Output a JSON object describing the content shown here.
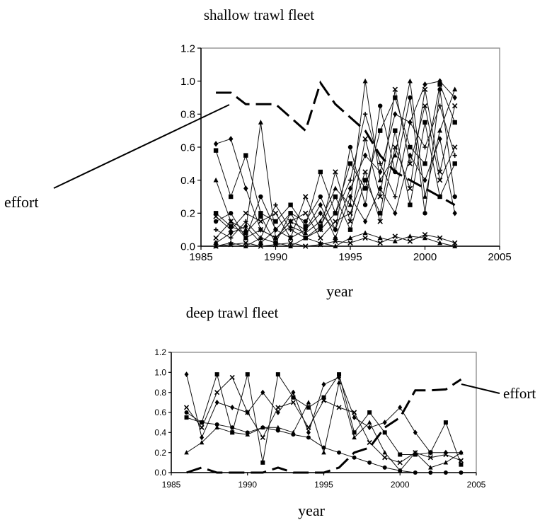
{
  "chart_data": [
    {
      "type": "line",
      "title": "shallow trawl fleet",
      "xlabel": "year",
      "ylabel": "",
      "xlim": [
        1985,
        2005
      ],
      "ylim": [
        0,
        1.2
      ],
      "xticks": [
        1985,
        1990,
        1995,
        2000,
        2005
      ],
      "yticks": [
        0.0,
        0.2,
        0.4,
        0.6,
        0.8,
        1.0,
        1.2
      ],
      "ytick_labels": [
        "0.0",
        "0.2",
        "0.4",
        "0.6",
        "0.8",
        "1.0",
        "1.2"
      ],
      "grid": false,
      "annotation": "effort",
      "effort": {
        "x": [
          1986,
          1987,
          1988,
          1989,
          1990,
          1991,
          1992,
          1993,
          1994,
          1995,
          1996,
          1997,
          1998,
          1999,
          2000,
          2001,
          2002
        ],
        "y": [
          0.93,
          0.93,
          0.86,
          0.86,
          0.86,
          0.78,
          0.7,
          0.99,
          0.86,
          0.78,
          0.7,
          0.55,
          0.45,
          0.4,
          0.35,
          0.3,
          0.25
        ]
      },
      "x": [
        1986,
        1987,
        1988,
        1989,
        1990,
        1991,
        1992,
        1993,
        1994,
        1995,
        1996,
        1997,
        1998,
        1999,
        2000,
        2001,
        2002
      ],
      "series": [
        {
          "values": [
            0.62,
            0.65,
            0.35,
            0.1,
            0.05,
            0.15,
            0.1,
            0.2,
            0.1,
            0.35,
            0.55,
            0.45,
            0.8,
            0.75,
            0.98,
            1.0,
            0.9
          ]
        },
        {
          "values": [
            0.58,
            0.3,
            0.55,
            0.2,
            0.15,
            0.25,
            0.12,
            0.45,
            0.2,
            0.5,
            0.35,
            0.7,
            0.9,
            0.6,
            0.5,
            0.98,
            0.75
          ]
        },
        {
          "values": [
            0.4,
            0.15,
            0.1,
            0.75,
            0.05,
            0.12,
            0.08,
            0.15,
            0.35,
            0.25,
            1.0,
            0.4,
            0.55,
            1.0,
            0.3,
            0.7,
            0.95
          ]
        },
        {
          "values": [
            0.18,
            0.1,
            0.2,
            0.15,
            0.2,
            0.05,
            0.3,
            0.1,
            0.45,
            0.15,
            0.65,
            0.3,
            0.95,
            0.5,
            0.85,
            0.4,
            0.6
          ]
        },
        {
          "values": [
            0.15,
            0.2,
            0.05,
            0.3,
            0.1,
            0.2,
            0.15,
            0.3,
            0.1,
            0.6,
            0.25,
            0.85,
            0.45,
            0.9,
            0.2,
            0.95,
            0.3
          ]
        },
        {
          "values": [
            0.1,
            0.05,
            0.15,
            0.05,
            0.25,
            0.1,
            0.05,
            0.1,
            0.2,
            0.4,
            0.8,
            0.5,
            0.3,
            0.75,
            0.6,
            0.85,
            0.55
          ]
        },
        {
          "values": [
            0.05,
            0.15,
            0.05,
            0.1,
            0.05,
            0.15,
            0.2,
            0.05,
            0.15,
            0.2,
            0.45,
            0.15,
            0.6,
            0.35,
            0.95,
            0.45,
            0.85
          ]
        },
        {
          "values": [
            0.02,
            0.08,
            0.12,
            0.02,
            0.1,
            0.05,
            0.1,
            0.25,
            0.05,
            0.3,
            0.15,
            0.35,
            0.2,
            0.55,
            0.4,
            0.65,
            0.2
          ]
        },
        {
          "values": [
            0.2,
            0.12,
            0.08,
            0.18,
            0.02,
            0.2,
            0.05,
            0.12,
            0.3,
            0.1,
            0.4,
            0.2,
            0.7,
            0.25,
            0.75,
            0.3,
            0.5
          ]
        },
        {
          "values": [
            0.0,
            0.02,
            0.0,
            0.05,
            0.02,
            0.0,
            0.05,
            0.02,
            0.0,
            0.05,
            0.08,
            0.05,
            0.03,
            0.06,
            0.05,
            0.02,
            0.0
          ]
        },
        {
          "values": [
            0.0,
            0.01,
            0.02,
            0.0,
            0.01,
            0.02,
            0.0,
            0.01,
            0.03,
            0.02,
            0.05,
            0.02,
            0.06,
            0.03,
            0.07,
            0.05,
            0.02
          ]
        }
      ]
    },
    {
      "type": "line",
      "title": "deep trawl fleet",
      "xlabel": "year",
      "ylabel": "",
      "xlim": [
        1985,
        2005
      ],
      "ylim": [
        0,
        1.2
      ],
      "xticks": [
        1985,
        1990,
        1995,
        2000,
        2005
      ],
      "yticks": [
        0.0,
        0.2,
        0.4,
        0.6,
        0.8,
        1.0,
        1.2
      ],
      "ytick_labels": [
        "0.0",
        "0.2",
        "0.4",
        "0.6",
        "0.8",
        "1.0",
        "1.2"
      ],
      "grid": false,
      "annotation": "effort",
      "effort": {
        "x": [
          1986,
          1987,
          1988,
          1989,
          1990,
          1991,
          1992,
          1993,
          1994,
          1995,
          1996,
          1997,
          1998,
          1999,
          2000,
          2001,
          2002,
          2003,
          2004
        ],
        "y": [
          0.0,
          0.05,
          0.0,
          0.0,
          0.0,
          0.0,
          0.05,
          0.0,
          0.0,
          0.0,
          0.05,
          0.2,
          0.25,
          0.45,
          0.55,
          0.82,
          0.82,
          0.83,
          0.93
        ]
      },
      "x": [
        1986,
        1987,
        1988,
        1989,
        1990,
        1991,
        1992,
        1993,
        1994,
        1995,
        1996,
        1997,
        1998,
        1999,
        2000,
        2001,
        2002,
        2003,
        2004
      ],
      "series": [
        {
          "values": [
            0.98,
            0.35,
            0.7,
            0.65,
            0.6,
            0.8,
            0.6,
            0.8,
            0.4,
            0.88,
            0.95,
            0.55,
            0.45,
            0.5,
            0.65,
            0.4,
            0.2,
            0.2,
            0.2
          ]
        },
        {
          "values": [
            0.55,
            0.5,
            0.98,
            0.4,
            0.98,
            0.1,
            0.98,
            0.75,
            0.65,
            0.75,
            0.98,
            0.4,
            0.6,
            0.4,
            0.18,
            0.18,
            0.2,
            0.5,
            0.08
          ]
        },
        {
          "values": [
            0.2,
            0.3,
            0.45,
            0.4,
            0.38,
            0.45,
            0.45,
            0.4,
            0.7,
            0.2,
            0.9,
            0.35,
            0.5,
            0.2,
            0.02,
            0.2,
            0.05,
            0.1,
            0.2
          ]
        },
        {
          "values": [
            0.65,
            0.45,
            0.8,
            0.95,
            0.6,
            0.35,
            0.65,
            0.7,
            0.45,
            0.72,
            0.65,
            0.6,
            0.3,
            0.15,
            0.1,
            0.2,
            0.15,
            0.18,
            0.12
          ]
        },
        {
          "values": [
            0.6,
            0.5,
            0.48,
            0.45,
            0.4,
            0.45,
            0.42,
            0.38,
            0.35,
            0.25,
            0.2,
            0.15,
            0.1,
            0.05,
            0.02,
            0.0,
            0.0,
            0.0,
            0.0
          ]
        }
      ]
    }
  ]
}
